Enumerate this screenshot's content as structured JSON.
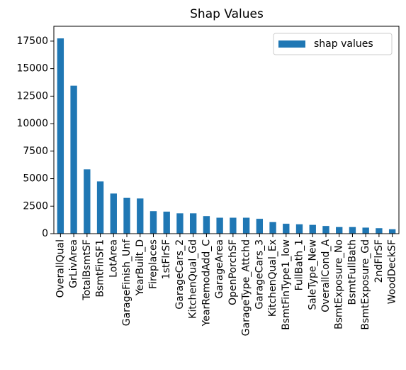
{
  "chart_data": {
    "type": "bar",
    "title": "Shap Values",
    "categories": [
      "OverallQual",
      "GrLivArea",
      "TotalBsmtSF",
      "BsmtFinSF1",
      "LotArea",
      "GarageFinish_Unf",
      "YearBuilt_D",
      "Fireplaces",
      "1stFlrSF",
      "GarageCars_2",
      "KitchenQual_Gd",
      "YearRemodAdd_C",
      "GarageArea",
      "OpenPorchSF",
      "GarageType_Attchd",
      "GarageCars_3",
      "KitchenQual_Ex",
      "BsmtFinType1_low",
      "FullBath_1",
      "SaleType_New",
      "OverallCond_A",
      "BsmtExposure_No",
      "BsmtFullBath",
      "BsmtExposure_Gd",
      "2ndFlrSF",
      "WoodDeckSF"
    ],
    "series": [
      {
        "name": "shap values",
        "color": "#1f77b4",
        "values": [
          17750,
          13450,
          5850,
          4750,
          3650,
          3250,
          3200,
          2050,
          2000,
          1850,
          1850,
          1600,
          1450,
          1450,
          1450,
          1350,
          1050,
          900,
          850,
          800,
          700,
          600,
          600,
          550,
          500,
          400
        ]
      }
    ],
    "ylim": [
      0,
      18850
    ],
    "yticks": [
      0,
      2500,
      5000,
      7500,
      10000,
      12500,
      15000,
      17500
    ],
    "legend": "upper right"
  }
}
